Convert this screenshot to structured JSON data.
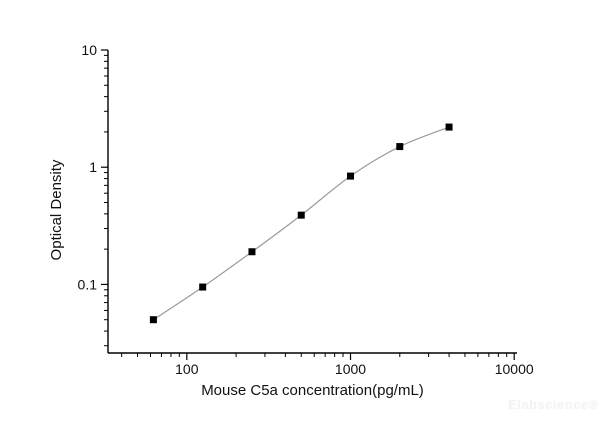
{
  "chart_data": {
    "type": "line",
    "markers": true,
    "title": "",
    "xlabel": "Mouse C5a concentration(pg/mL)",
    "ylabel": "Optical Density",
    "x_scale": "log",
    "y_scale": "log",
    "xlim": [
      33,
      10400
    ],
    "ylim": [
      0.026,
      10
    ],
    "x_major_ticks": [
      100,
      1000,
      10000
    ],
    "x_tick_labels": [
      "100",
      "1000",
      "10000"
    ],
    "y_major_ticks": [
      0.1,
      1,
      10
    ],
    "y_tick_labels": [
      "0.1",
      "1",
      "10"
    ],
    "grid": "off",
    "legend": "none",
    "axis_color": "#000000",
    "series": [
      {
        "name": "standard-curve",
        "marker": "square",
        "marker_color": "#000000",
        "line_color": "#9a9a9a",
        "points": [
          {
            "x": 62.5,
            "y": 0.05
          },
          {
            "x": 125,
            "y": 0.095
          },
          {
            "x": 250,
            "y": 0.19
          },
          {
            "x": 500,
            "y": 0.39
          },
          {
            "x": 1000,
            "y": 0.84
          },
          {
            "x": 2000,
            "y": 1.5
          },
          {
            "x": 4000,
            "y": 2.2
          }
        ]
      }
    ],
    "watermark": "Elabscience®"
  }
}
